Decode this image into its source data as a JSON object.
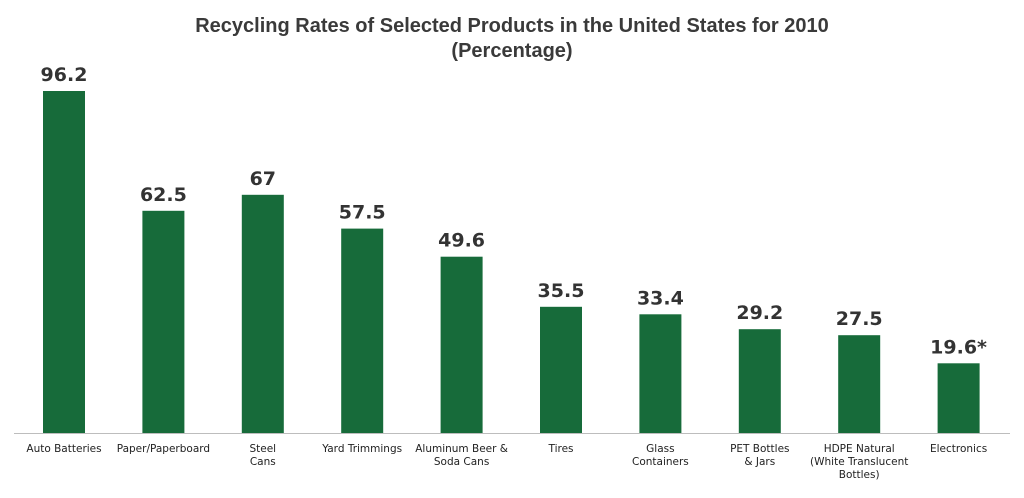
{
  "chart_data": {
    "type": "bar",
    "title_lines": [
      "Recycling Rates of Selected Products in the United States for 2010",
      "(Percentage)"
    ],
    "xlabel": "",
    "ylabel": "",
    "ylim": [
      0,
      100
    ],
    "grid": false,
    "legend": "none",
    "bar_color": "#176b3a",
    "categories": [
      [
        "Auto Batteries"
      ],
      [
        "Paper/Paperboard"
      ],
      [
        "Steel",
        "Cans"
      ],
      [
        "Yard Trimmings"
      ],
      [
        "Aluminum Beer &",
        "Soda Cans"
      ],
      [
        "Tires"
      ],
      [
        "Glass",
        "Containers"
      ],
      [
        "PET Bottles",
        "& Jars"
      ],
      [
        "HDPE Natural",
        "(White Translucent",
        "Bottles)"
      ],
      [
        "Electronics"
      ]
    ],
    "values": [
      96.2,
      62.5,
      67,
      57.5,
      49.6,
      35.5,
      33.4,
      29.2,
      27.5,
      19.6
    ],
    "value_labels": [
      "96.2",
      "62.5",
      "67",
      "57.5",
      "49.6",
      "35.5",
      "33.4",
      "29.2",
      "27.5",
      "19.6*"
    ]
  }
}
